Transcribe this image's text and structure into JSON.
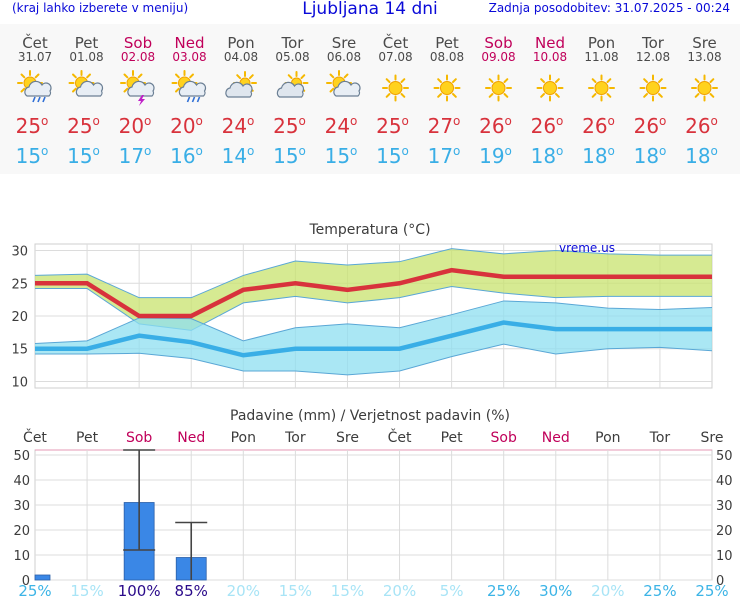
{
  "header": {
    "menu_hint": "(kraj lahko izberete v meniju)",
    "title": "Ljubljana 14 dni",
    "last_update": "Zadnja posodobitev: 31.07.2025 - 00:24"
  },
  "colors": {
    "tmax_line": "#d8323c",
    "tmin_line": "#39aee6",
    "tmax_band": "#c8e36e",
    "tmin_band": "#8edff0",
    "precip_bar": "#3a87e6",
    "weekend_text": "#c0005a",
    "title_text": "#0a0ad8"
  },
  "days": [
    {
      "name": "Čet",
      "date": "31.07",
      "weekend": false,
      "icon": "sun-cloud-rain-icon",
      "tmax": "25",
      "tmin": "15"
    },
    {
      "name": "Pet",
      "date": "01.08",
      "weekend": false,
      "icon": "sun-cloud-icon",
      "tmax": "25",
      "tmin": "15"
    },
    {
      "name": "Sob",
      "date": "02.08",
      "weekend": true,
      "icon": "sun-cloud-storm-icon",
      "tmax": "20",
      "tmin": "17"
    },
    {
      "name": "Ned",
      "date": "03.08",
      "weekend": true,
      "icon": "sun-cloud-rain-icon",
      "tmax": "20",
      "tmin": "16"
    },
    {
      "name": "Pon",
      "date": "04.08",
      "weekend": false,
      "icon": "cloud-sun-icon",
      "tmax": "24",
      "tmin": "14"
    },
    {
      "name": "Tor",
      "date": "05.08",
      "weekend": false,
      "icon": "cloud-sun-icon",
      "tmax": "25",
      "tmin": "15"
    },
    {
      "name": "Sre",
      "date": "06.08",
      "weekend": false,
      "icon": "sun-cloud-icon",
      "tmax": "24",
      "tmin": "15"
    },
    {
      "name": "Čet",
      "date": "07.08",
      "weekend": false,
      "icon": "sun-icon",
      "tmax": "25",
      "tmin": "15"
    },
    {
      "name": "Pet",
      "date": "08.08",
      "weekend": false,
      "icon": "sun-icon",
      "tmax": "27",
      "tmin": "17"
    },
    {
      "name": "Sob",
      "date": "09.08",
      "weekend": true,
      "icon": "sun-icon",
      "tmax": "26",
      "tmin": "19"
    },
    {
      "name": "Ned",
      "date": "10.08",
      "weekend": true,
      "icon": "sun-icon",
      "tmax": "26",
      "tmin": "18"
    },
    {
      "name": "Pon",
      "date": "11.08",
      "weekend": false,
      "icon": "sun-icon",
      "tmax": "26",
      "tmin": "18"
    },
    {
      "name": "Tor",
      "date": "12.08",
      "weekend": false,
      "icon": "sun-icon",
      "tmax": "26",
      "tmin": "18"
    },
    {
      "name": "Sre",
      "date": "13.08",
      "weekend": false,
      "icon": "sun-icon",
      "tmax": "26",
      "tmin": "18"
    }
  ],
  "chart_data": [
    {
      "type": "line",
      "title": "Temperatura (°C)",
      "watermark": "vreme.us",
      "x": [
        "Čet",
        "Pet",
        "Sob",
        "Ned",
        "Pon",
        "Tor",
        "Sre",
        "Čet",
        "Pet",
        "Sob",
        "Ned",
        "Pon",
        "Tor",
        "Sre"
      ],
      "ylim": [
        9,
        31
      ],
      "yticks": [
        10,
        15,
        20,
        25,
        30
      ],
      "grid": true,
      "series": [
        {
          "key": "tmax",
          "values": [
            25,
            25,
            20,
            20,
            24,
            25,
            24,
            25,
            27,
            26,
            26,
            26,
            26,
            26
          ],
          "band_low": [
            24.2,
            24.2,
            18.8,
            17.8,
            22,
            23,
            22,
            22.8,
            24.5,
            23.5,
            22.8,
            23,
            23,
            23
          ],
          "band_high": [
            26.2,
            26.4,
            22.8,
            22.8,
            26.2,
            28.4,
            27.8,
            28.3,
            30.3,
            29.5,
            30,
            29.5,
            29.3,
            29.3
          ]
        },
        {
          "key": "tmin",
          "values": [
            15,
            15,
            17,
            16,
            14,
            15,
            15,
            15,
            17,
            19,
            18,
            18,
            18,
            18
          ],
          "band_low": [
            14.2,
            14.2,
            14.3,
            13.5,
            11.6,
            11.6,
            11,
            11.6,
            13.8,
            15.7,
            14.2,
            15,
            15.2,
            14.7
          ],
          "band_high": [
            15.8,
            16.2,
            19.7,
            19.6,
            16.2,
            18.2,
            18.8,
            18.2,
            20.2,
            22.3,
            22,
            21.2,
            21,
            21.3
          ]
        }
      ]
    },
    {
      "type": "bar",
      "title": "Padavine (mm) / Verjetnost padavin (%)",
      "x": [
        "Čet",
        "Pet",
        "Sob",
        "Ned",
        "Pon",
        "Tor",
        "Sre",
        "Čet",
        "Pet",
        "Sob",
        "Ned",
        "Pon",
        "Tor",
        "Sre"
      ],
      "ylim": [
        0,
        52
      ],
      "yticks": [
        0,
        10,
        20,
        30,
        40,
        50
      ],
      "grid": true,
      "values": [
        2,
        0,
        31,
        9,
        0,
        0,
        0,
        0,
        0,
        0,
        0,
        0,
        0,
        0
      ],
      "error_low": [
        null,
        null,
        12,
        0,
        null,
        null,
        null,
        null,
        null,
        null,
        null,
        null,
        null,
        null
      ],
      "error_high": [
        null,
        null,
        52,
        23,
        null,
        null,
        null,
        null,
        null,
        null,
        null,
        null,
        null,
        null
      ],
      "probability": [
        "25%",
        "15%",
        "100%",
        "85%",
        "20%",
        "15%",
        "15%",
        "20%",
        "5%",
        "25%",
        "30%",
        "20%",
        "25%",
        "25%"
      ]
    }
  ]
}
